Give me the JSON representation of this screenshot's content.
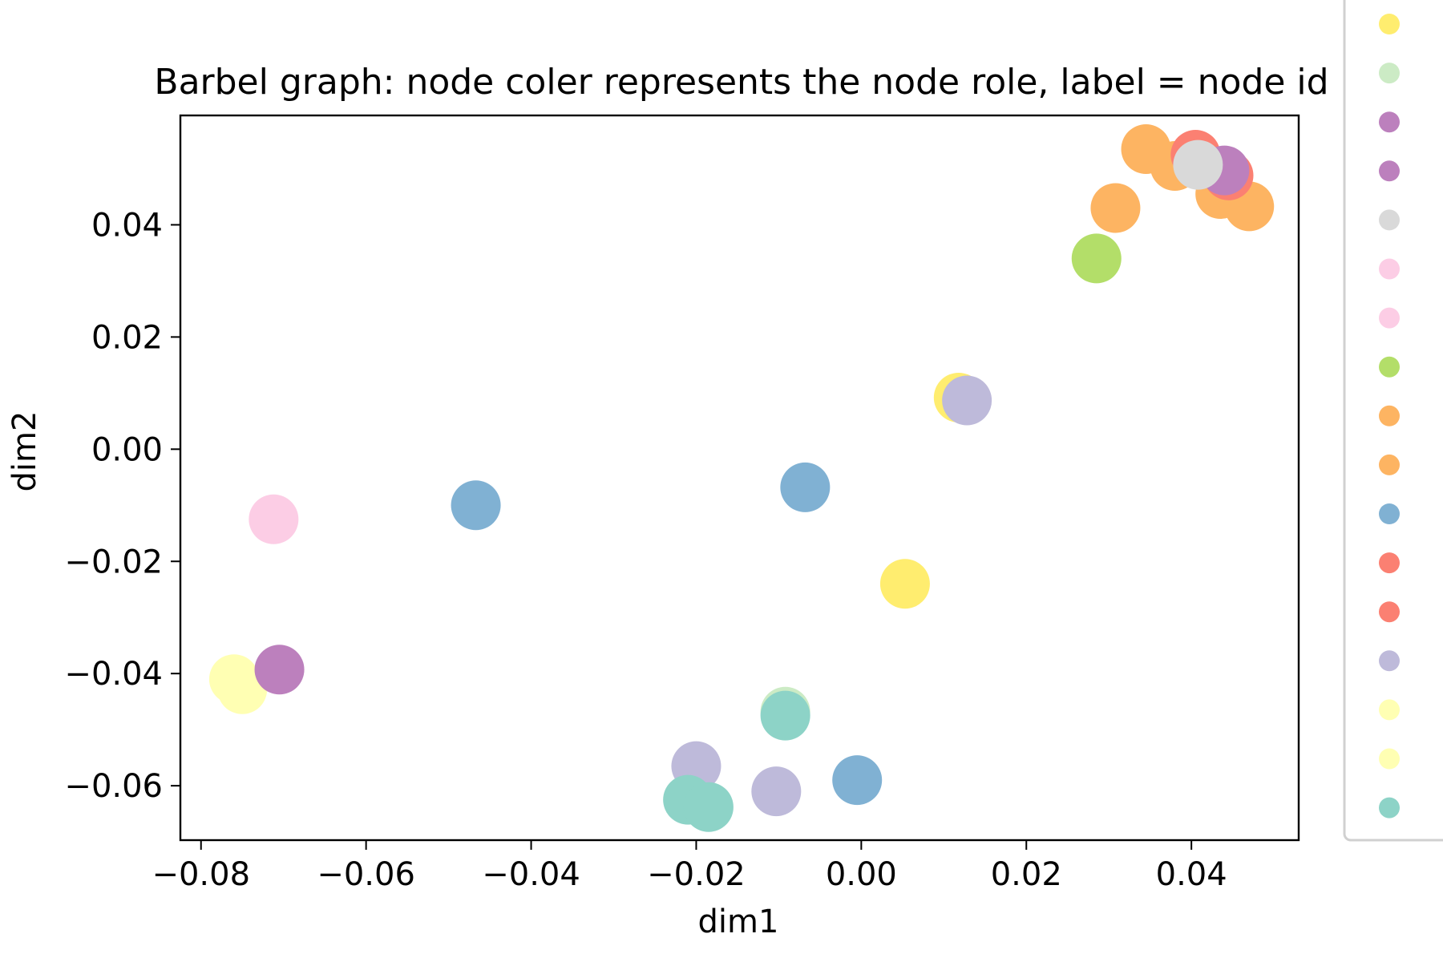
{
  "chart_data": {
    "type": "scatter",
    "title": "Barbel graph: node coler represents the node role, label = node id",
    "xlabel": "dim1",
    "ylabel": "dim2",
    "xlim": [
      -0.0825,
      0.053
    ],
    "ylim": [
      -0.0697,
      0.0595
    ],
    "x_ticks": [
      -0.08,
      -0.06,
      -0.04,
      -0.02,
      0.0,
      0.02,
      0.04
    ],
    "x_tick_labels": [
      "−0.08",
      "−0.06",
      "−0.04",
      "−0.02",
      "0.00",
      "0.02",
      "0.04"
    ],
    "y_ticks": [
      -0.06,
      -0.04,
      -0.02,
      0.0,
      0.02,
      0.04
    ],
    "y_tick_labels": [
      "−0.06",
      "−0.04",
      "−0.02",
      "0.00",
      "0.02",
      "0.04"
    ],
    "grid": false,
    "legend_placement": "outside-right",
    "legend_markers": [
      "#ffed6f",
      "#ccebc5",
      "#bc80bd",
      "#bc80bd",
      "#d9d9d9",
      "#fccde5",
      "#fccde5",
      "#b3de69",
      "#fdb462",
      "#fdb462",
      "#80b1d3",
      "#fb8072",
      "#fb8072",
      "#bebada",
      "#ffffb3",
      "#ffffb3",
      "#8dd3c7"
    ],
    "points": [
      {
        "x": 0.0345,
        "y": 0.0535,
        "color": "#fdb462"
      },
      {
        "x": 0.038,
        "y": 0.0505,
        "color": "#fdb462"
      },
      {
        "x": 0.0435,
        "y": 0.0455,
        "color": "#fdb462"
      },
      {
        "x": 0.047,
        "y": 0.0433,
        "color": "#fdb462"
      },
      {
        "x": 0.0405,
        "y": 0.0525,
        "color": "#fb8072"
      },
      {
        "x": 0.0445,
        "y": 0.0488,
        "color": "#fb8072"
      },
      {
        "x": 0.044,
        "y": 0.0497,
        "color": "#bc80bd"
      },
      {
        "x": 0.0408,
        "y": 0.0507,
        "color": "#d9d9d9"
      },
      {
        "x": 0.0308,
        "y": 0.043,
        "color": "#fdb462"
      },
      {
        "x": 0.0285,
        "y": 0.034,
        "color": "#b3de69"
      },
      {
        "x": 0.0118,
        "y": 0.0092,
        "color": "#ffed6f"
      },
      {
        "x": 0.0128,
        "y": 0.0087,
        "color": "#bebada"
      },
      {
        "x": -0.0068,
        "y": -0.0068,
        "color": "#80b1d3"
      },
      {
        "x": -0.0467,
        "y": -0.01,
        "color": "#80b1d3"
      },
      {
        "x": -0.0712,
        "y": -0.0125,
        "color": "#fccde5"
      },
      {
        "x": 0.0053,
        "y": -0.024,
        "color": "#ffed6f"
      },
      {
        "x": -0.076,
        "y": -0.041,
        "color": "#ffffb3"
      },
      {
        "x": -0.075,
        "y": -0.0428,
        "color": "#ffffb3"
      },
      {
        "x": -0.0705,
        "y": -0.0393,
        "color": "#bc80bd"
      },
      {
        "x": -0.0092,
        "y": -0.0468,
        "color": "#ccebc5"
      },
      {
        "x": -0.0092,
        "y": -0.0475,
        "color": "#8dd3c7"
      },
      {
        "x": -0.02,
        "y": -0.0565,
        "color": "#bebada"
      },
      {
        "x": -0.021,
        "y": -0.0625,
        "color": "#8dd3c7"
      },
      {
        "x": -0.0185,
        "y": -0.0638,
        "color": "#8dd3c7"
      },
      {
        "x": -0.0103,
        "y": -0.061,
        "color": "#bebada"
      },
      {
        "x": -0.0005,
        "y": -0.059,
        "color": "#80b1d3"
      }
    ]
  }
}
